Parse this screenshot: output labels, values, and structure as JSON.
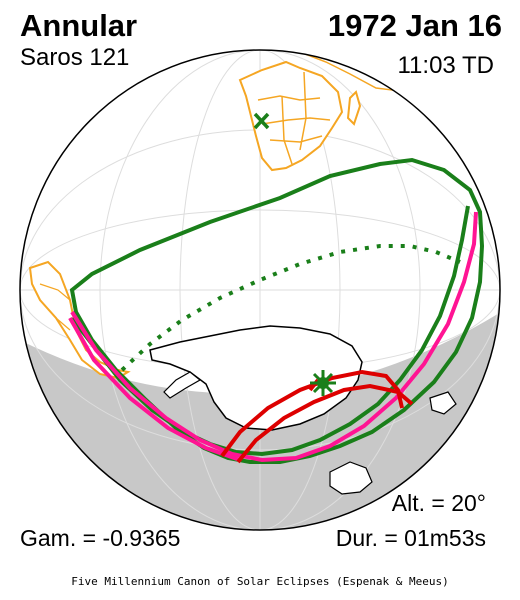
{
  "eclipse": {
    "type": "Annular",
    "saros": "Saros 121",
    "date": "1972 Jan 16",
    "time": "11:03 TD",
    "altitude": "Alt. = 20°",
    "gamma": "Gam. = -0.9365",
    "duration": "Dur. = 01m53s"
  },
  "footer": "Five Millennium Canon of Solar Eclipses (Espenak & Meeus)",
  "colors": {
    "land": "#ffffff",
    "borders": "#f5a623",
    "night": "#c8c8c8",
    "penumbra_limits": "#1a7f1a",
    "central_path": "#ff1493",
    "eclipse_at_sunrise_sunset": "#dd0000",
    "subsolar_marker": "#1a7f1a",
    "greatest_eclipse_marker": "#1a7f1a"
  },
  "markers": {
    "subsolar_point": "x-marker",
    "greatest_eclipse": "star-marker"
  }
}
